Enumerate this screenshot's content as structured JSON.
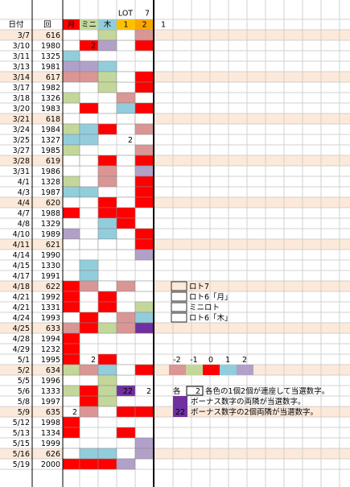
{
  "header": {
    "lot": "LOT",
    "lot_num": "7",
    "columns": [
      "日付",
      "回",
      "月",
      "ミニ",
      "木",
      "1",
      "2",
      "1"
    ],
    "colors": [
      null,
      null,
      "R",
      "G",
      "B",
      "Y",
      "O",
      null
    ]
  },
  "palette": {
    "W": "#ffffff",
    "R": "#ff0000",
    "P": "#da9694",
    "G": "#c4d79b",
    "B": "#92cddc",
    "V": "#b1a0c7",
    "D": "#7030a0",
    "Y": "#ffc000",
    "O": "#f7a800"
  },
  "rows": [
    {
      "date": "3/7",
      "draw": 616,
      "shade": true,
      "cells": [
        "W",
        "W",
        "G",
        "W",
        "P"
      ]
    },
    {
      "date": "3/10",
      "draw": 1980,
      "cells": [
        "W",
        {
          "color": "R",
          "text": "2"
        },
        "V",
        "W",
        "R"
      ]
    },
    {
      "date": "3/11",
      "draw": 1325,
      "cells": [
        "B",
        "W",
        "W",
        "W",
        "W"
      ]
    },
    {
      "date": "3/13",
      "draw": 1981,
      "cells": [
        "V",
        "V",
        "B",
        "W",
        "W"
      ]
    },
    {
      "date": "3/14",
      "draw": 617,
      "shade": true,
      "cells": [
        "P",
        "P",
        "G",
        "W",
        "R"
      ]
    },
    {
      "date": "3/17",
      "draw": 1982,
      "cells": [
        "W",
        "W",
        "G",
        "W",
        "R"
      ]
    },
    {
      "date": "3/18",
      "draw": 1326,
      "cells": [
        "G",
        "W",
        "W",
        "P",
        "W"
      ]
    },
    {
      "date": "3/20",
      "draw": 1983,
      "cells": [
        "W",
        "R",
        "W",
        "B",
        "R"
      ]
    },
    {
      "date": "3/21",
      "draw": 618,
      "shade": true,
      "cells": [
        "W",
        "W",
        "W",
        "W",
        "W"
      ]
    },
    {
      "date": "3/24",
      "draw": 1984,
      "cells": [
        "G",
        "B",
        "R",
        "W",
        "P"
      ]
    },
    {
      "date": "3/25",
      "draw": 1327,
      "cells": [
        "B",
        "B",
        "W",
        {
          "color": "W",
          "text": "2"
        },
        "W"
      ]
    },
    {
      "date": "3/27",
      "draw": 1985,
      "cells": [
        "G",
        "W",
        "W",
        "W",
        "P"
      ]
    },
    {
      "date": "3/28",
      "draw": 619,
      "shade": true,
      "cells": [
        "W",
        "W",
        "R",
        "W",
        "R"
      ]
    },
    {
      "date": "3/31",
      "draw": 1986,
      "cells": [
        "W",
        "W",
        "P",
        "W",
        "V"
      ]
    },
    {
      "date": "4/1",
      "draw": 1328,
      "cells": [
        "G",
        "W",
        "P",
        "W",
        "R"
      ]
    },
    {
      "date": "4/3",
      "draw": 1987,
      "cells": [
        "B",
        "B",
        "W",
        "W",
        "R"
      ]
    },
    {
      "date": "4/4",
      "draw": 620,
      "shade": true,
      "cells": [
        "W",
        "W",
        "R",
        "W",
        "R"
      ]
    },
    {
      "date": "4/7",
      "draw": 1988,
      "cells": [
        "R",
        "W",
        "R",
        "R",
        "W"
      ]
    },
    {
      "date": "4/8",
      "draw": 1329,
      "cells": [
        "W",
        "W",
        "B",
        "R",
        "W"
      ]
    },
    {
      "date": "4/10",
      "draw": 1989,
      "cells": [
        "V",
        "W",
        "B",
        "W",
        "R"
      ]
    },
    {
      "date": "4/11",
      "draw": 621,
      "shade": true,
      "cells": [
        "W",
        "W",
        "W",
        "W",
        "R"
      ]
    },
    {
      "date": "4/14",
      "draw": 1990,
      "cells": [
        "W",
        "W",
        "W",
        "W",
        "V"
      ]
    },
    {
      "date": "4/15",
      "draw": 1330,
      "cells": [
        "W",
        "B",
        "W",
        "W",
        "W"
      ]
    },
    {
      "date": "4/17",
      "draw": 1991,
      "cells": [
        "W",
        "B",
        "W",
        "W",
        "W"
      ]
    },
    {
      "date": "4/18",
      "draw": 622,
      "shade": true,
      "cells": [
        "R",
        "P",
        "W",
        "P",
        "W"
      ]
    },
    {
      "date": "4/21",
      "draw": 1992,
      "cells": [
        "R",
        "W",
        "R",
        "W",
        "W"
      ]
    },
    {
      "date": "4/21",
      "draw": 1331,
      "cells": [
        "R",
        "W",
        "R",
        "W",
        "G"
      ]
    },
    {
      "date": "4/24",
      "draw": 1993,
      "cells": [
        "W",
        "R",
        "W",
        "P",
        "B"
      ]
    },
    {
      "date": "4/25",
      "draw": 633,
      "shade": true,
      "cells": [
        "P",
        "R",
        "G",
        "P",
        "D"
      ]
    },
    {
      "date": "4/28",
      "draw": 1994,
      "cells": [
        "R",
        "W",
        "W",
        "W",
        "W"
      ]
    },
    {
      "date": "4/29",
      "draw": 1232,
      "cells": [
        "R",
        "W",
        "W",
        "W",
        "W"
      ]
    },
    {
      "date": "5/1",
      "draw": 1995,
      "cells": [
        "R",
        {
          "color": "W",
          "text": "2"
        },
        "R",
        "W",
        "W"
      ]
    },
    {
      "date": "5/2",
      "draw": 634,
      "shade": true,
      "cells": [
        "G",
        "P",
        "B",
        "W",
        "R"
      ]
    },
    {
      "date": "5/5",
      "draw": 1996,
      "cells": [
        "W",
        "W",
        "G",
        "W",
        "W"
      ]
    },
    {
      "date": "5/6",
      "draw": 1333,
      "cells": [
        "G",
        "R",
        "G",
        {
          "color": "D",
          "text": "22"
        },
        {
          "color": "W",
          "text": "2"
        }
      ]
    },
    {
      "date": "5/8",
      "draw": 1997,
      "cells": [
        "W",
        "R",
        "G",
        "W",
        "W"
      ]
    },
    {
      "date": "5/9",
      "draw": 635,
      "shade": true,
      "cells": [
        {
          "color": "W",
          "text": "2"
        },
        "P",
        "W",
        "R",
        "R"
      ]
    },
    {
      "date": "5/12",
      "draw": 1998,
      "cells": [
        "R",
        "W",
        "W",
        "W",
        "W"
      ]
    },
    {
      "date": "5/13",
      "draw": 1334,
      "cells": [
        "R",
        "W",
        "W",
        "R",
        "W"
      ]
    },
    {
      "date": "5/15",
      "draw": 1999,
      "cells": [
        "W",
        "W",
        "W",
        "W",
        "V"
      ]
    },
    {
      "date": "5/16",
      "draw": 626,
      "shade": true,
      "cells": [
        "W",
        "B",
        "B",
        "W",
        "V"
      ]
    },
    {
      "date": "5/19",
      "draw": 2000,
      "cells": [
        "R",
        "R",
        "R",
        "V",
        "W"
      ]
    }
  ],
  "legend": {
    "items": [
      "ロト7",
      "ロト6「月」",
      "ミニロト",
      "ロト6「木」"
    ],
    "scale": [
      -2,
      -1,
      0,
      1,
      2
    ],
    "scale_colors": [
      "P",
      "G",
      "R",
      "B",
      "V"
    ]
  },
  "notes": [
    {
      "mark": "各",
      "box": "2",
      "text": "各色の1個2個が連座して当選数字。"
    },
    {
      "text": "ボーナス数字の両隣が当選数字。"
    },
    {
      "box": "22",
      "text": "ボーナス数字の2個両隣が当選数字。"
    }
  ]
}
